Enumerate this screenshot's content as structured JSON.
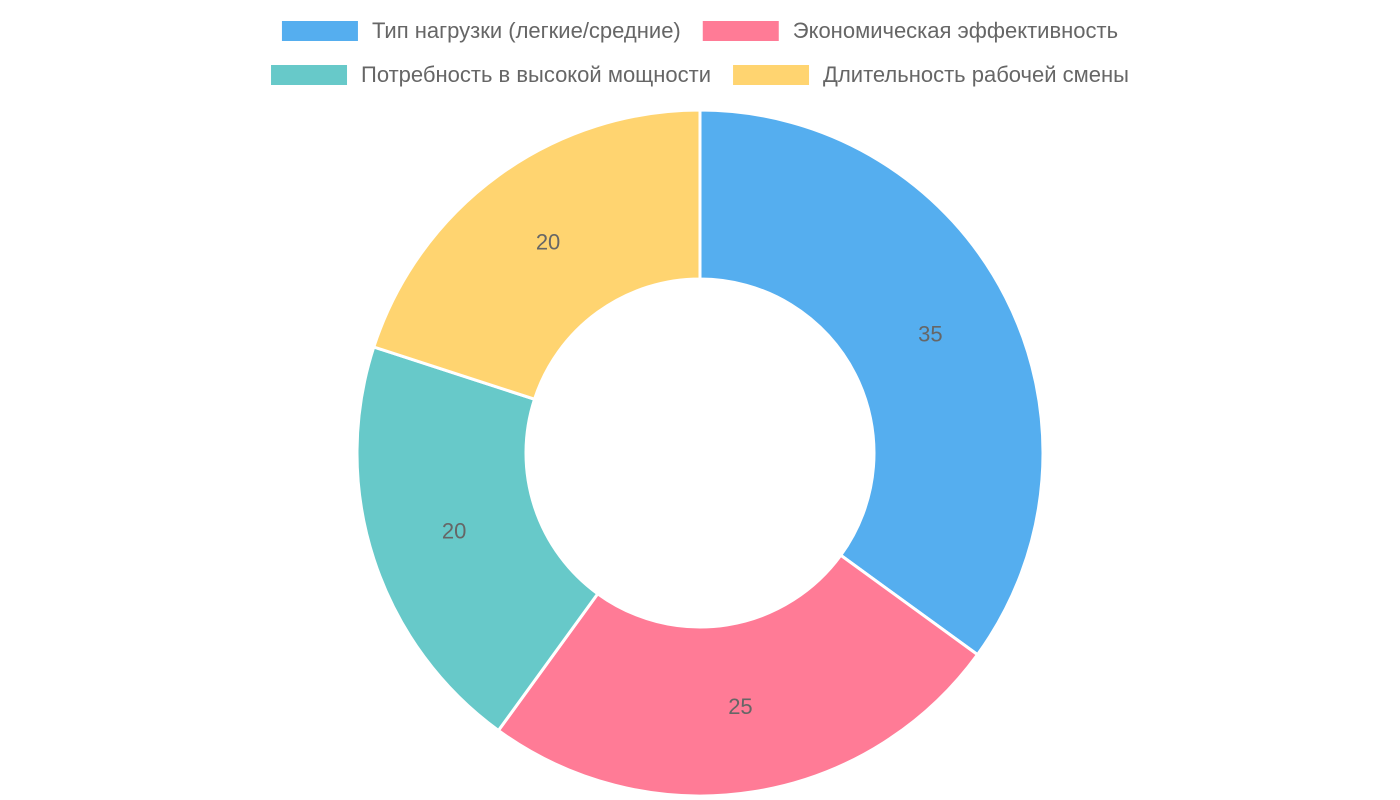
{
  "chart_data": {
    "type": "doughnut",
    "categories": [
      "Тип нагрузки (легкие/средние)",
      "Экономическая эффективность",
      "Потребность в высокой мощности",
      "Длительность рабочей смены"
    ],
    "values": [
      35,
      25,
      20,
      20
    ],
    "colors": [
      "#55aeef",
      "#ff7b96",
      "#67c9c9",
      "#ffd470"
    ],
    "legend": "top"
  }
}
